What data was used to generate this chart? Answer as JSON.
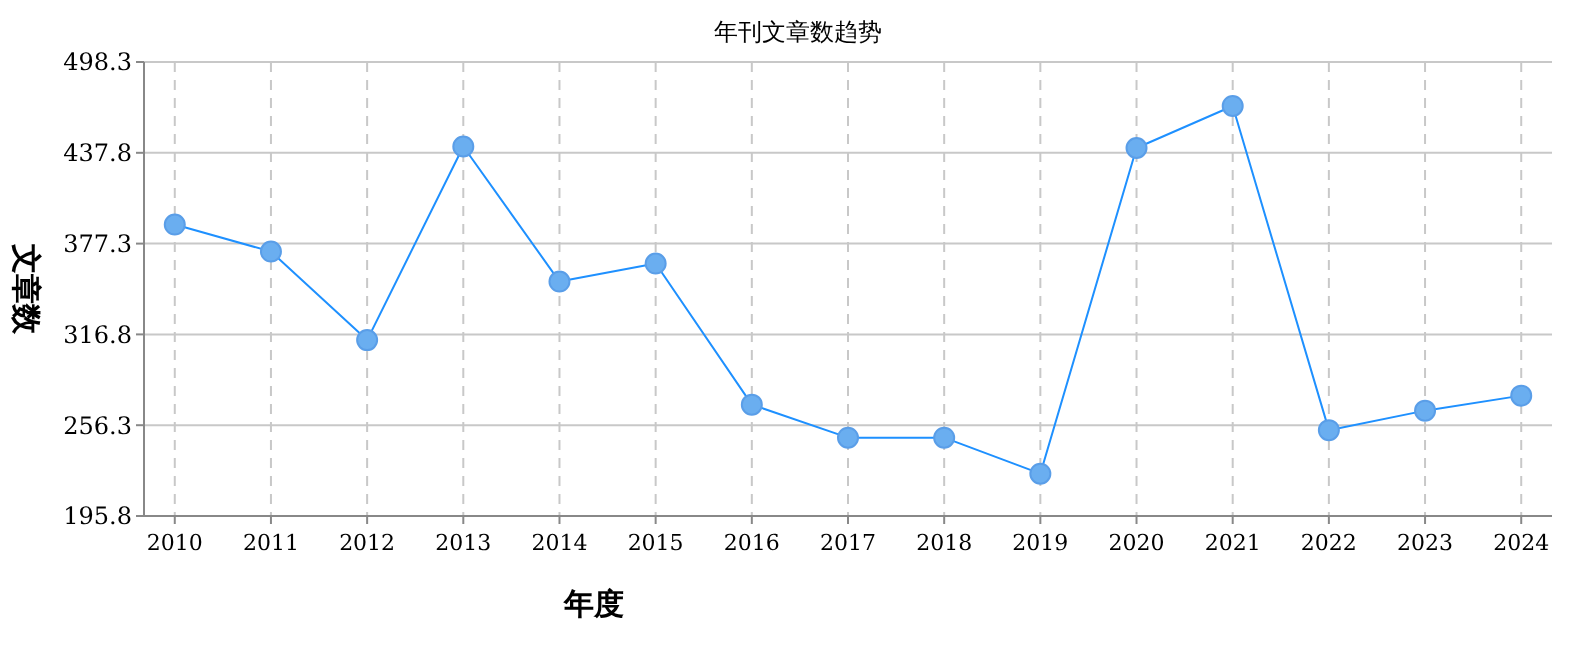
{
  "chart_data": {
    "type": "line",
    "title": "年刊文章数趋势",
    "xlabel": "年度",
    "ylabel": "文章数",
    "categories": [
      "2010",
      "2011",
      "2012",
      "2013",
      "2014",
      "2015",
      "2016",
      "2017",
      "2018",
      "2019",
      "2020",
      "2021",
      "2022",
      "2023",
      "2024"
    ],
    "series": [
      {
        "color": "#1e90ff",
        "values": [
          390,
          372,
          313,
          442,
          352,
          364,
          270,
          248,
          248,
          224,
          441,
          469,
          253,
          266,
          276
        ]
      }
    ],
    "ylim": [
      195.8,
      498.3
    ],
    "yticks": [
      195.8,
      256.3,
      316.8,
      377.3,
      437.8,
      498.3
    ],
    "grid": true,
    "marker": "circle",
    "line_style": "solid"
  }
}
